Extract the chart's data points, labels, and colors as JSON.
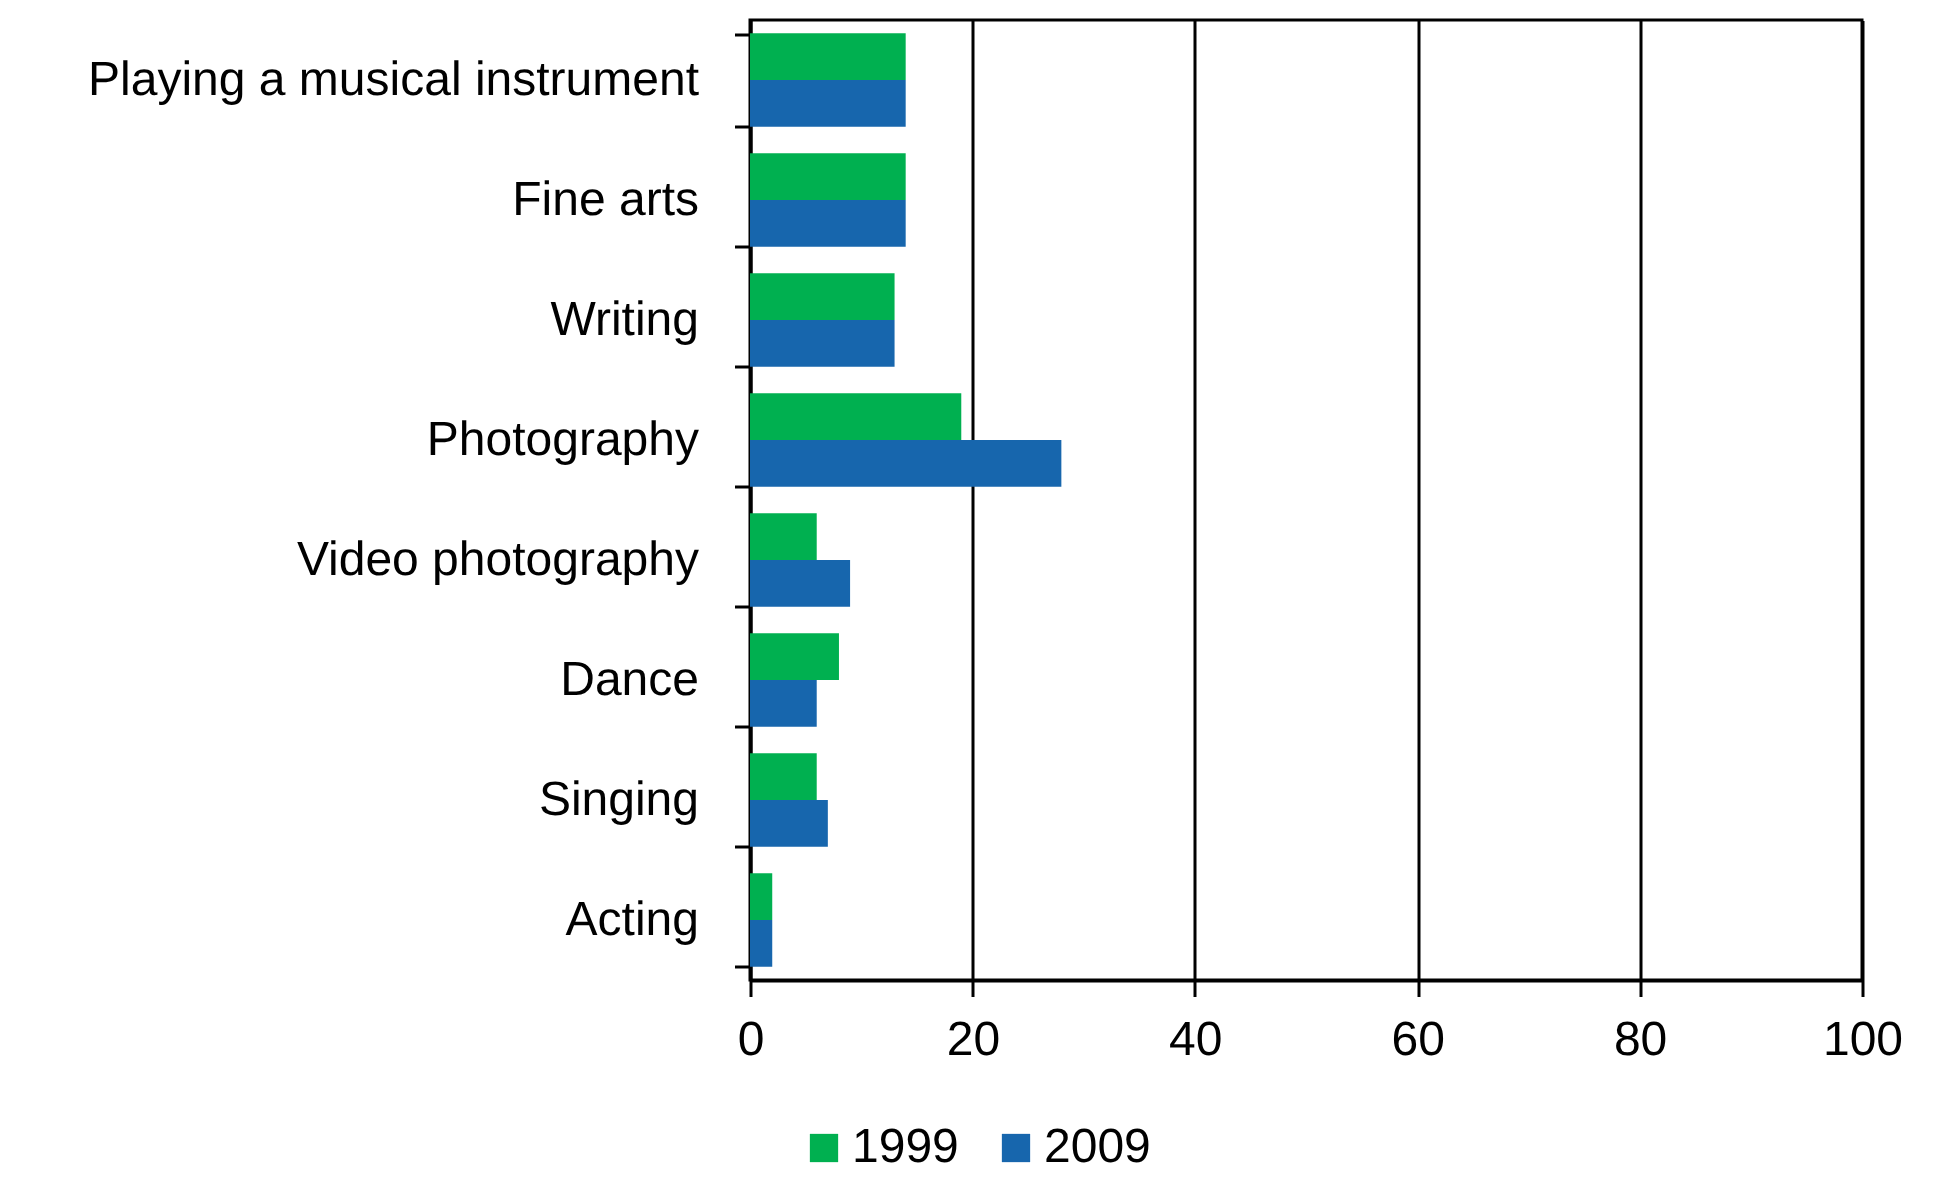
{
  "chart_data": {
    "type": "bar",
    "orientation": "horizontal",
    "categories": [
      "Playing a musical instrument",
      "Fine arts",
      "Writing",
      "Photography",
      "Video photography",
      "Dance",
      "Singing",
      "Acting"
    ],
    "series": [
      {
        "name": "1999",
        "color": "#00b050",
        "values": [
          14,
          14,
          13,
          19,
          6,
          8,
          6,
          2
        ]
      },
      {
        "name": "2009",
        "color": "#1766ad",
        "values": [
          14,
          14,
          13,
          28,
          9,
          6,
          7,
          2
        ]
      }
    ],
    "xlim": [
      0,
      100
    ],
    "xticks": [
      0,
      20,
      40,
      60,
      80,
      100
    ],
    "grid": "x",
    "legend": "bottom"
  }
}
